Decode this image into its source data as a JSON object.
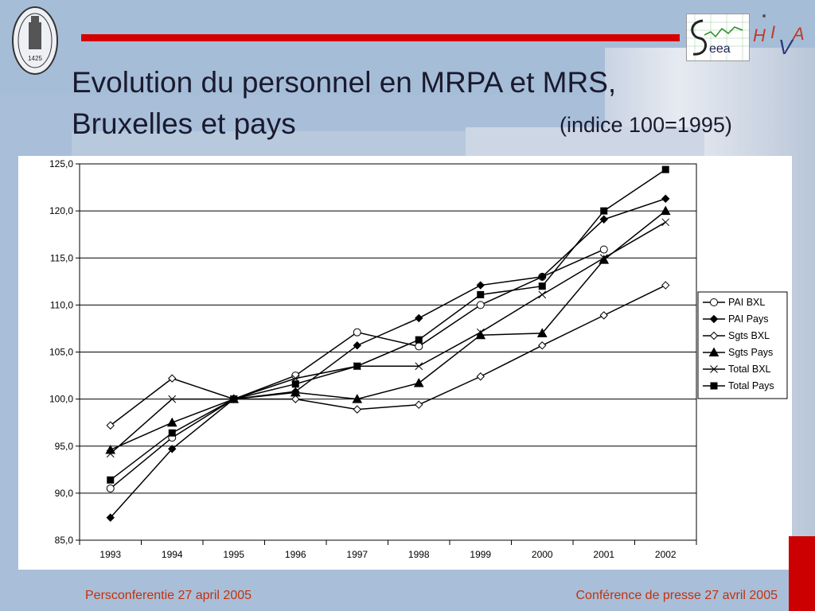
{
  "slide": {
    "title_line1": "Evolution du personnel en MRPA et MRS,",
    "title_line2": "Bruxelles et pays",
    "subtitle": "(indice 100=1995)",
    "footer_left": "Persconferentie 27 april 2005",
    "footer_right": "Conférence de presse 27 avril 2005",
    "logo_seea_text": "eea",
    "seal_text": "1425"
  },
  "colors": {
    "accent_red": "#d40000",
    "footer_text": "#c2310d"
  },
  "chart_data": {
    "type": "line",
    "categories": [
      "1993",
      "1994",
      "1995",
      "1996",
      "1997",
      "1998",
      "1999",
      "2000",
      "2001",
      "2002"
    ],
    "ylim": [
      85,
      125
    ],
    "yticks": [
      "85,0",
      "90,0",
      "95,0",
      "100,0",
      "105,0",
      "110,0",
      "115,0",
      "120,0",
      "125,0"
    ],
    "grid": true,
    "legend_position": "right",
    "series": [
      {
        "name": "PAI BXL",
        "marker": "circle-open",
        "values": [
          90.5,
          95.9,
          100.0,
          102.5,
          107.1,
          105.6,
          110.0,
          113.0,
          115.9,
          null
        ]
      },
      {
        "name": "PAI Pays",
        "marker": "diamond-filled",
        "values": [
          87.4,
          94.7,
          100.0,
          100.8,
          105.7,
          108.6,
          112.1,
          113.0,
          119.1,
          121.3
        ]
      },
      {
        "name": "Sgts BXL",
        "marker": "diamond-open",
        "values": [
          97.2,
          102.2,
          100.0,
          100.0,
          98.9,
          99.4,
          102.4,
          105.7,
          108.9,
          112.1
        ]
      },
      {
        "name": "Sgts Pays",
        "marker": "triangle-filled",
        "values": [
          94.6,
          97.5,
          100.0,
          100.7,
          100.0,
          101.7,
          106.8,
          107.0,
          114.8,
          120.0
        ]
      },
      {
        "name": "Total BXL",
        "marker": "cross",
        "values": [
          94.2,
          100.0,
          100.0,
          102.2,
          103.5,
          103.5,
          107.1,
          111.1,
          115.0,
          118.8
        ]
      },
      {
        "name": "Total Pays",
        "marker": "square-filled",
        "values": [
          91.4,
          96.4,
          100.0,
          101.6,
          103.5,
          106.3,
          111.1,
          112.0,
          120.0,
          124.4
        ]
      }
    ]
  }
}
